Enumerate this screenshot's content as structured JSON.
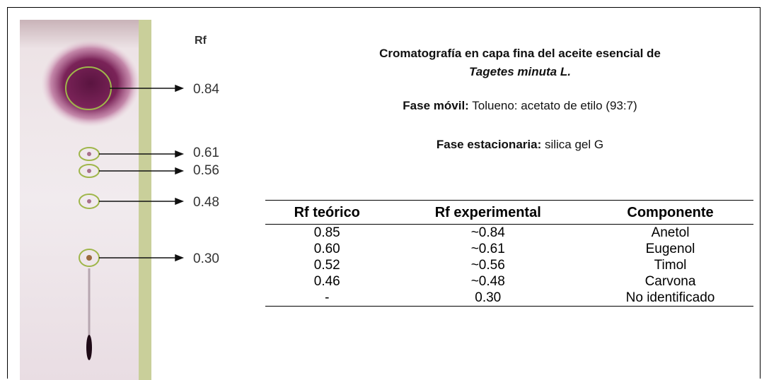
{
  "plate": {
    "rf_heading": "Rf",
    "spots": [
      "0.84",
      "0.61",
      "0.56",
      "0.48",
      "0.30"
    ]
  },
  "header": {
    "title_line1": "Cromatografía en capa fina del aceite esencial de",
    "title_line2": "Tagetes minuta L.",
    "mobile_label": "Fase móvil:",
    "mobile_text": " Tolueno: acetato de etilo (93:7)",
    "stationary_label": "Fase estacionaria:",
    "stationary_text": " silica gel G"
  },
  "table": {
    "headers": [
      "Rf teórico",
      "Rf experimental",
      "Componente"
    ],
    "rows": [
      [
        "0.85",
        "~0.84",
        "Anetol"
      ],
      [
        "0.60",
        "~0.61",
        "Eugenol"
      ],
      [
        "0.52",
        "~0.56",
        "Timol"
      ],
      [
        "0.46",
        "~0.48",
        "Carvona"
      ],
      [
        "-",
        "0.30",
        "No identificado"
      ]
    ]
  }
}
